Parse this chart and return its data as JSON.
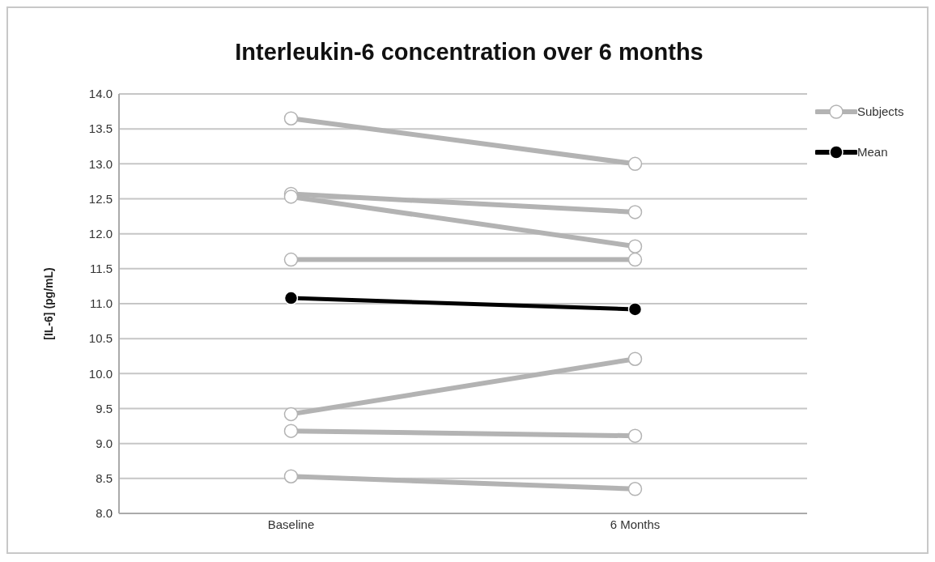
{
  "chart_data": {
    "type": "line",
    "title": "Interleukin-6 concentration over 6 months",
    "ylabel": "[IL-6] (pg/mL)",
    "categories": [
      "Baseline",
      "6 Months"
    ],
    "series": [
      {
        "name": "Subjects",
        "color": "#b3b3b3",
        "values": [
          13.65,
          13.0
        ]
      },
      {
        "color": "#b3b3b3",
        "values": [
          12.57,
          12.31
        ]
      },
      {
        "color": "#b3b3b3",
        "values": [
          12.53,
          11.82
        ]
      },
      {
        "color": "#b3b3b3",
        "values": [
          11.63,
          11.63
        ]
      },
      {
        "color": "#b3b3b3",
        "values": [
          9.42,
          10.21
        ]
      },
      {
        "color": "#b3b3b3",
        "values": [
          9.18,
          9.11
        ]
      },
      {
        "color": "#b3b3b3",
        "values": [
          8.53,
          8.35
        ]
      },
      {
        "name": "Mean",
        "color": "#000000",
        "values": [
          11.08,
          10.92
        ]
      }
    ],
    "ylim": [
      8.0,
      14.0
    ],
    "yticks": [
      {
        "value": 8,
        "label": "8.0"
      },
      {
        "value": 8.5,
        "label": "8.5"
      },
      {
        "value": 9,
        "label": "9.0"
      },
      {
        "value": 9.5,
        "label": "9.5"
      },
      {
        "value": 10,
        "label": "10.0"
      },
      {
        "value": 10.5,
        "label": "10.5"
      },
      {
        "value": 11,
        "label": "11.0"
      },
      {
        "value": 11.5,
        "label": "11.5"
      },
      {
        "value": 12,
        "label": "12.0"
      },
      {
        "value": 12.5,
        "label": "12.5"
      },
      {
        "value": 13,
        "label": "13.0"
      },
      {
        "value": 13.5,
        "label": "13.5"
      },
      {
        "value": 14,
        "label": "14.0"
      }
    ],
    "grid": "y",
    "legend": "right",
    "marker": "circle",
    "line_style": "solid"
  }
}
